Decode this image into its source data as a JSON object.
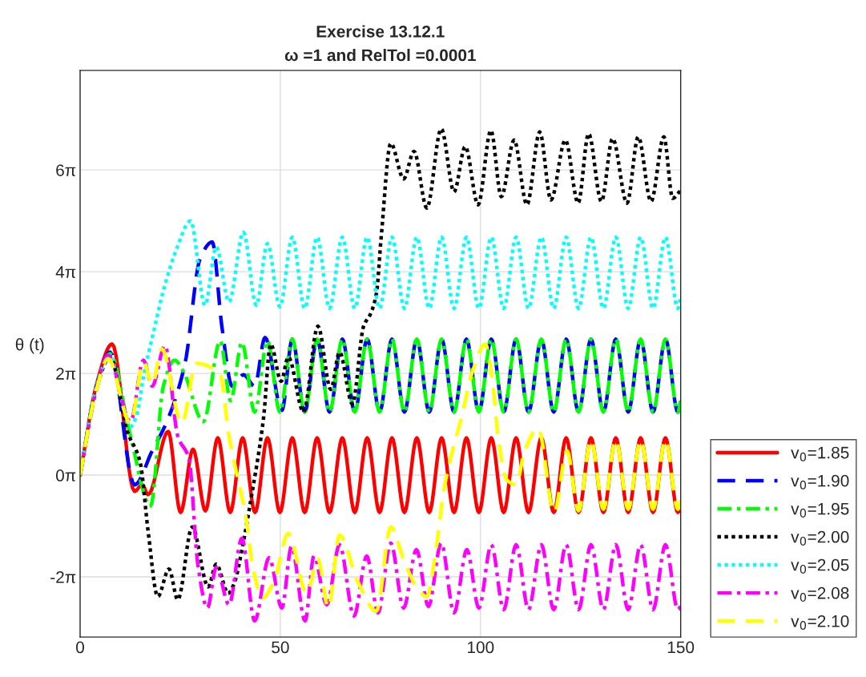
{
  "chart_data": {
    "type": "line",
    "title": "Exercise 13.12.1",
    "subtitle": "ω =1 and RelTol =0.0001",
    "ylabel": "θ (t)",
    "xlim": [
      0,
      150
    ],
    "xticks": [
      0,
      50,
      100,
      150
    ],
    "ylim": [
      -10,
      25
    ],
    "yticks": [
      {
        "value": -6.283,
        "label": "-2π"
      },
      {
        "value": 0,
        "label": "0π"
      },
      {
        "value": 6.283,
        "label": "2π"
      },
      {
        "value": 12.566,
        "label": "4π"
      },
      {
        "value": 18.85,
        "label": "6π"
      }
    ],
    "grid": true,
    "legend": "right",
    "marker": "none",
    "series": [
      {
        "name": "v$_{0}$=1.85",
        "color": "#ff0000",
        "line_style": "solid",
        "x": [
          0,
          4,
          8,
          13.6,
          15.5,
          17,
          22,
          25.1,
          28.2,
          31.3,
          34.4,
          37.5,
          40.6,
          43.7,
          46.8,
          49.9,
          53,
          56.1,
          59.2,
          62.3,
          65.5,
          68.6,
          71.7,
          74.8,
          77.9,
          81,
          84.1,
          87.2,
          90.3,
          93.4,
          96.5,
          99.6,
          102.7,
          105.8,
          108.9,
          112,
          115.2,
          118.3,
          121.4,
          124.5,
          127.6,
          130.7,
          133.8,
          136.9,
          140,
          143.1,
          146.2,
          149.3,
          150
        ],
        "values": [
          0,
          5.5,
          8.1,
          -1.0,
          -0.6,
          -1.2,
          2.7,
          -2.3,
          1.6,
          -2.2,
          2.3,
          -2.3,
          2.3,
          -2.3,
          2.3,
          -2.3,
          2.3,
          -2.3,
          2.3,
          -2.3,
          2.3,
          -2.3,
          2.3,
          -2.3,
          2.3,
          -2.3,
          2.3,
          -2.3,
          2.3,
          -2.3,
          2.3,
          -2.3,
          2.3,
          -2.3,
          2.3,
          -2.3,
          2.3,
          -2.3,
          2.3,
          -2.3,
          2.3,
          -2.3,
          2.3,
          -2.3,
          2.3,
          -2.3,
          2.3,
          -2.3,
          -1.9
        ]
      },
      {
        "name": "v$_{0}$=1.90",
        "color": "#0000ff",
        "line_style": "dashed",
        "x": [
          0,
          4,
          7.5,
          13.6,
          18,
          22,
          26.2,
          30,
          33,
          35.4,
          38,
          40.8,
          43.6,
          46.2,
          50.4,
          53,
          56.1,
          59.2,
          62.3,
          65.5,
          68.6,
          71.7,
          74.8,
          77.9,
          81,
          84.1,
          87.2,
          90.3,
          93.4,
          96.5,
          99.6,
          102.7,
          105.8,
          108.9,
          112,
          115.2,
          118.3,
          121.4,
          124.5,
          127.6,
          130.7,
          133.8,
          136.9,
          140,
          143.1,
          146.2,
          149.3,
          150
        ],
        "values": [
          0,
          5.4,
          7.6,
          -0.6,
          1.5,
          3.5,
          6.9,
          13.4,
          14.4,
          9.2,
          5.5,
          6.2,
          5.5,
          8.5,
          4.0,
          8.4,
          3.9,
          8.4,
          3.9,
          8.4,
          3.9,
          8.4,
          3.9,
          8.4,
          3.9,
          8.4,
          3.9,
          8.4,
          3.9,
          8.4,
          3.9,
          8.4,
          3.9,
          8.4,
          3.9,
          8.4,
          3.9,
          8.4,
          3.9,
          8.4,
          3.9,
          8.4,
          3.9,
          8.4,
          3.9,
          8.4,
          3.9,
          4.6
        ]
      },
      {
        "name": "v$_{0}$=1.95",
        "color": "#00ff00",
        "line_style": "dashdot",
        "x": [
          0,
          4,
          7.5,
          12.5,
          17.6,
          20.8,
          23.6,
          25.8,
          30.8,
          35,
          37.6,
          40.4,
          43.6,
          46.8,
          49.9,
          53,
          56.1,
          59.2,
          62.3,
          65.5,
          68.6,
          71.7,
          74.8,
          77.9,
          81,
          84.1,
          87.2,
          90.3,
          93.4,
          96.5,
          99.6,
          102.7,
          105.8,
          108.9,
          112,
          115.2,
          118.3,
          121.4,
          124.5,
          127.6,
          130.7,
          133.8,
          136.9,
          140,
          143.1,
          146.2,
          149.3,
          150
        ],
        "values": [
          0,
          5.3,
          7.5,
          2.5,
          -1.9,
          5.5,
          7.1,
          6.4,
          3.3,
          8.3,
          4.6,
          8.2,
          3.9,
          8.3,
          3.9,
          8.4,
          3.9,
          8.4,
          3.9,
          8.4,
          3.9,
          8.4,
          3.9,
          8.4,
          3.9,
          8.4,
          3.9,
          8.4,
          3.9,
          8.4,
          3.9,
          8.4,
          3.9,
          8.4,
          3.9,
          8.4,
          3.9,
          8.4,
          3.9,
          8.4,
          3.9,
          8.4,
          3.9,
          8.4,
          3.9,
          8.4,
          3.9,
          4.6
        ]
      },
      {
        "name": "v$_{0}$=2.00",
        "color": "#000000",
        "line_style": "dotted",
        "x": [
          0,
          4,
          7.5,
          11.8,
          15,
          17,
          19.4,
          22.2,
          24.4,
          28,
          32,
          34,
          37,
          38.6,
          40.5,
          42.6,
          45.8,
          47.6,
          50.2,
          52,
          55.8,
          59.4,
          62.6,
          64.8,
          68,
          70.8,
          72.6,
          74,
          75.2,
          77.6,
          80.8,
          83.4,
          86.6,
          90.2,
          93.4,
          96.2,
          99.4,
          102.6,
          105.2,
          108.4,
          111.6,
          114.8,
          117.6,
          121.2,
          124.4,
          127,
          130.2,
          133,
          136.6,
          139.4,
          142.6,
          145.8,
          148,
          150
        ],
        "values": [
          0,
          5.3,
          7.3,
          2.7,
          0.8,
          -3.5,
          -7.5,
          -5.8,
          -7.7,
          -3.2,
          -6.9,
          -5.5,
          -7.3,
          -6.6,
          -4.5,
          -1.6,
          3.5,
          8.1,
          5.8,
          7.3,
          3.9,
          9.2,
          5.3,
          7.6,
          4.4,
          9.2,
          10.0,
          11.2,
          14.7,
          20.5,
          18.3,
          20.0,
          16.5,
          21.4,
          17.5,
          20.3,
          16.7,
          21.3,
          17.2,
          20.7,
          16.7,
          21.2,
          17.0,
          20.7,
          16.8,
          21.1,
          16.9,
          20.8,
          16.8,
          20.9,
          16.9,
          20.9,
          17.1,
          17.6
        ]
      },
      {
        "name": "v$_{0}$=2.05",
        "color": "#00ffff",
        "line_style": "dotted",
        "x": [
          0,
          4,
          7.5,
          10,
          12.6,
          14,
          16,
          18.5,
          20.8,
          24,
          27.6,
          31.2,
          34,
          37.2,
          40.8,
          44,
          46.8,
          49.9,
          53,
          56.1,
          59.2,
          62.3,
          65.5,
          68.6,
          71.7,
          74.8,
          77.9,
          81,
          84.1,
          87.2,
          90.3,
          93.4,
          96.5,
          99.6,
          102.7,
          105.8,
          108.9,
          112,
          115.2,
          118.3,
          121.4,
          124.5,
          127.6,
          130.7,
          133.8,
          136.9,
          140,
          143.1,
          146.2,
          149.3,
          150
        ],
        "values": [
          0,
          5.4,
          7.4,
          5.0,
          3.0,
          3.6,
          6.3,
          9.0,
          11.4,
          13.9,
          15.7,
          10.5,
          14.1,
          10.7,
          15.0,
          10.5,
          14.3,
          10.4,
          14.7,
          10.3,
          14.7,
          10.3,
          14.7,
          10.3,
          14.7,
          10.3,
          14.7,
          10.3,
          14.7,
          10.3,
          14.7,
          10.3,
          14.7,
          10.3,
          14.7,
          10.3,
          14.7,
          10.3,
          14.7,
          10.3,
          14.7,
          10.3,
          14.7,
          10.3,
          14.7,
          10.3,
          14.7,
          10.3,
          14.7,
          10.3,
          11.0
        ]
      },
      {
        "name": "v$_{0}$=2.08",
        "color": "#ff00ff",
        "line_style": "dashdot",
        "x": [
          0,
          4,
          7,
          12.6,
          15.8,
          18,
          21.2,
          24.4,
          27.2,
          29.4,
          31.8,
          34,
          37.2,
          40.4,
          43.6,
          47.2,
          50.4,
          52.8,
          56.2,
          58.4,
          61.6,
          64.8,
          68.4,
          71.6,
          74.4,
          77.6,
          80.8,
          84,
          87,
          90.2,
          93.4,
          96.6,
          99.6,
          102.7,
          105.8,
          108.9,
          112,
          115.2,
          118.3,
          121.4,
          124.5,
          127.6,
          130.7,
          133.8,
          136.9,
          140,
          143.1,
          146.2,
          149.3,
          150
        ],
        "values": [
          0,
          5.2,
          7.4,
          3.3,
          7.1,
          5.5,
          8.0,
          2.4,
          1.0,
          -5.5,
          -8.2,
          -5.7,
          -8.0,
          -3.9,
          -9.0,
          -5.1,
          -8.2,
          -4.4,
          -9.0,
          -5.0,
          -8.0,
          -4.3,
          -8.7,
          -5.0,
          -8.5,
          -4.2,
          -8.2,
          -4.6,
          -8.1,
          -4.2,
          -8.5,
          -4.6,
          -8.2,
          -4.3,
          -8.3,
          -4.3,
          -8.3,
          -4.3,
          -8.3,
          -4.3,
          -8.3,
          -4.3,
          -8.3,
          -4.3,
          -8.3,
          -4.3,
          -8.3,
          -4.3,
          -8.3,
          -8.1
        ]
      },
      {
        "name": "v$_{0}$=2.10",
        "color": "#ffff00",
        "line_style": "dashed",
        "x": [
          0,
          4,
          7,
          12.6,
          15.8,
          18,
          20.4,
          25.4,
          29,
          35,
          37.2,
          39.2,
          41.2,
          43.4,
          45.5,
          48.5,
          52,
          56.6,
          59.4,
          62,
          64.8,
          69.4,
          74,
          77.6,
          80.8,
          84,
          86.6,
          89,
          90.8,
          93,
          95.2,
          98,
          101.2,
          103,
          104.4,
          106.6,
          109,
          110.8,
          114.4,
          118.4,
          121.6,
          124.5,
          127.6,
          130.7,
          133.8,
          136.9,
          140,
          143.1,
          146.2,
          149.3,
          150
        ],
        "values": [
          0,
          5.2,
          7.2,
          3.2,
          7.0,
          5.6,
          7.8,
          3.2,
          6.9,
          6.2,
          2.4,
          0.0,
          -2.3,
          -6.0,
          -7.6,
          -6.5,
          -3.6,
          -7.3,
          -5.2,
          -8.2,
          -3.7,
          -6.6,
          -8.4,
          -3.2,
          -5.2,
          -6.9,
          -7.5,
          -4.4,
          -1.0,
          1.5,
          3.5,
          6.4,
          8.1,
          5.8,
          2.4,
          -0.3,
          -0.6,
          1.3,
          2.9,
          -2.3,
          1.5,
          -2.2,
          2.2,
          -2.1,
          2.2,
          -2.1,
          2.2,
          -2.1,
          2.2,
          -2.1,
          -1.5
        ]
      }
    ]
  }
}
